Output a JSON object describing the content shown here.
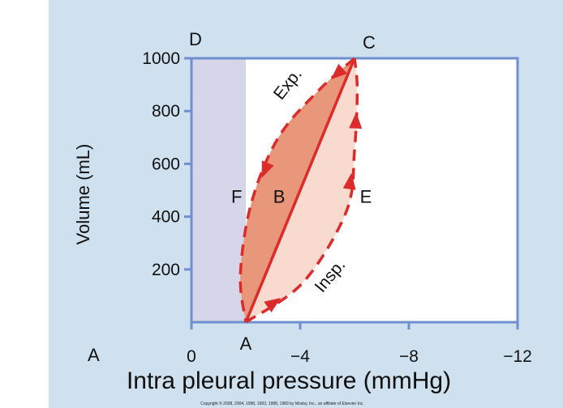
{
  "chart_data": {
    "type": "line",
    "title": "",
    "xlabel": "Intra pleural pressure (mmHg)",
    "ylabel": "Volume (mL)",
    "xlim": [
      0,
      -12
    ],
    "ylim": [
      0,
      1000
    ],
    "x_ticks": [
      {
        "value": 0,
        "label": "0"
      },
      {
        "value": -4,
        "label": "−4"
      },
      {
        "value": -8,
        "label": "−8"
      },
      {
        "value": -12,
        "label": "−12"
      }
    ],
    "y_ticks": [
      {
        "value": 200,
        "label": "200"
      },
      {
        "value": 400,
        "label": "400"
      },
      {
        "value": 600,
        "label": "600"
      },
      {
        "value": 800,
        "label": "800"
      },
      {
        "value": 1000,
        "label": "1000"
      }
    ],
    "points": [
      {
        "name": "A",
        "x": -2,
        "y": 0
      },
      {
        "name": "B",
        "x": -4.2,
        "y": 480
      },
      {
        "name": "C",
        "x": -6,
        "y": 1000
      },
      {
        "name": "D",
        "x": 0,
        "y": 1000
      },
      {
        "name": "E",
        "x": -5.9,
        "y": 480
      },
      {
        "name": "F",
        "x": -2.3,
        "y": 480
      }
    ],
    "series": [
      {
        "name": "Insp.",
        "style": "dashed",
        "x": [
          -2,
          -4.1,
          -5.7,
          -6.0,
          -6.1,
          -6
        ],
        "y": [
          0,
          150,
          420,
          650,
          880,
          1000
        ]
      },
      {
        "name": "Exp.",
        "style": "dashed",
        "x": [
          -6,
          -4.7,
          -3.2,
          -2.2,
          -1.8,
          -2
        ],
        "y": [
          1000,
          880,
          700,
          450,
          180,
          0
        ]
      },
      {
        "style": "solid",
        "x": [
          -2,
          -6
        ],
        "y": [
          0,
          1000
        ]
      }
    ],
    "labels": {
      "corner_a": "A",
      "corner_d": "D",
      "copyright": "Copyright © 2008, 2004, 1998, 1993, 1988, 1983 by Mosby, Inc., an affiliate of Elsevier Inc."
    },
    "colors": {
      "background": "#cfe0ef",
      "plot_panel": "#d6d6ea",
      "plot_border": "#6f8fcf",
      "exp_fill": "#e8977a",
      "insp_fill": "#f9dace",
      "curve": "#dd2a2a"
    }
  }
}
